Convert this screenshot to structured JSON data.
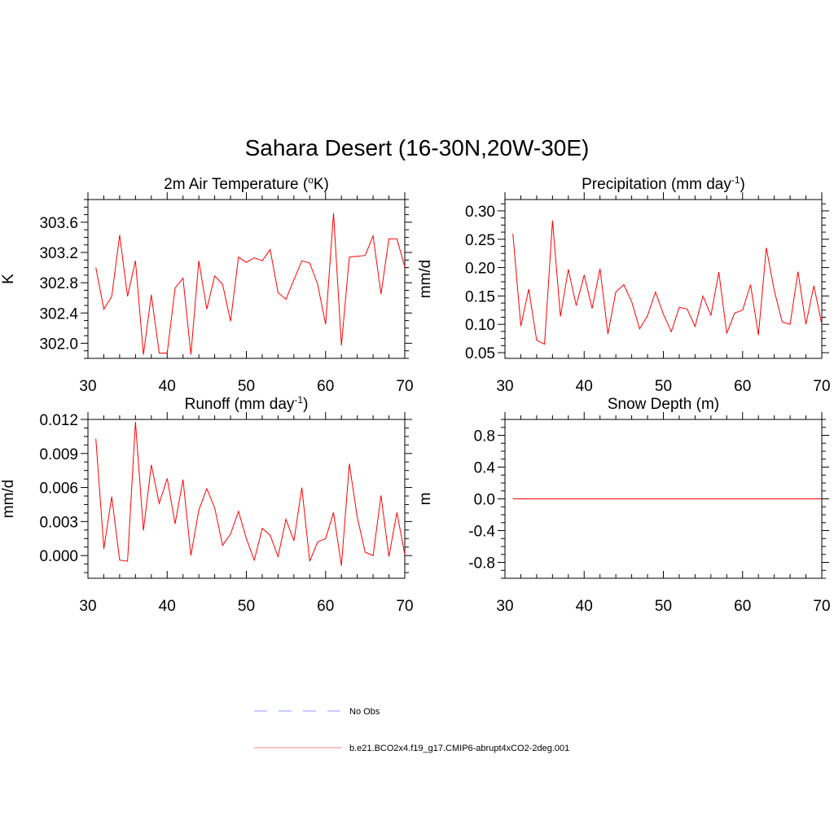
{
  "figure_title": "Sahara Desert (16-30N,20W-30E)",
  "legend": [
    {
      "label": "No Obs",
      "color": "#9999ff",
      "style": "dashed"
    },
    {
      "label": "b.e21.BCO2x4.f19_g17.CMIP6-abrupt4xCO2-2deg.001",
      "color": "#ff8080",
      "style": "solid"
    }
  ],
  "chart_data": [
    {
      "type": "line",
      "title": {
        "base": "2m Air Temperature (",
        "sup": "o",
        "after": "K)"
      },
      "ylabel": "K",
      "xlim": [
        30,
        70
      ],
      "ylim": [
        301.8,
        303.9
      ],
      "xticks": [
        "30",
        "40",
        "50",
        "60",
        "70"
      ],
      "yticks": [
        "302.0",
        "302.4",
        "302.8",
        "303.2",
        "303.6"
      ],
      "x": [
        31,
        32,
        33,
        34,
        35,
        36,
        37,
        38,
        39,
        40,
        41,
        42,
        43,
        44,
        45,
        46,
        47,
        48,
        49,
        50,
        51,
        52,
        53,
        54,
        55,
        56,
        57,
        58,
        59,
        60,
        61,
        62,
        63,
        64,
        65,
        66,
        67,
        68,
        69,
        70
      ],
      "series": [
        {
          "color": "#ff0000",
          "values": [
            303.0,
            302.45,
            302.62,
            303.43,
            302.62,
            303.09,
            301.85,
            302.64,
            301.87,
            301.87,
            302.73,
            302.86,
            301.85,
            303.09,
            302.45,
            302.89,
            302.78,
            302.29,
            303.14,
            303.07,
            303.13,
            303.09,
            303.24,
            302.67,
            302.58,
            302.84,
            303.09,
            303.06,
            302.78,
            302.25,
            303.72,
            301.97,
            303.14,
            303.15,
            303.16,
            303.42,
            302.65,
            303.38,
            303.38,
            303.01
          ]
        }
      ]
    },
    {
      "type": "line",
      "title": {
        "base": "Precipitation (mm day",
        "sup": "-1",
        "after": ")"
      },
      "ylabel": "mm/d",
      "xlim": [
        30,
        70
      ],
      "ylim": [
        0.04,
        0.32
      ],
      "xticks": [
        "30",
        "40",
        "50",
        "60",
        "70"
      ],
      "yticks": [
        "0.05",
        "0.10",
        "0.15",
        "0.20",
        "0.25",
        "0.30"
      ],
      "x": [
        31,
        32,
        33,
        34,
        35,
        36,
        37,
        38,
        39,
        40,
        41,
        42,
        43,
        44,
        45,
        46,
        47,
        48,
        49,
        50,
        51,
        52,
        53,
        54,
        55,
        56,
        57,
        58,
        59,
        60,
        61,
        62,
        63,
        64,
        65,
        66,
        67,
        68,
        69,
        70
      ],
      "series": [
        {
          "color": "#ff0000",
          "values": [
            0.26,
            0.097,
            0.162,
            0.072,
            0.065,
            0.283,
            0.114,
            0.197,
            0.133,
            0.187,
            0.128,
            0.198,
            0.083,
            0.157,
            0.17,
            0.14,
            0.092,
            0.115,
            0.157,
            0.118,
            0.087,
            0.13,
            0.127,
            0.096,
            0.15,
            0.116,
            0.192,
            0.084,
            0.12,
            0.125,
            0.17,
            0.081,
            0.235,
            0.16,
            0.104,
            0.1,
            0.193,
            0.1,
            0.168,
            0.1
          ]
        }
      ]
    },
    {
      "type": "line",
      "title": {
        "base": "Runoff (mm day",
        "sup": "-1",
        "after": ")"
      },
      "ylabel": "mm/d",
      "xlim": [
        30,
        70
      ],
      "ylim": [
        -0.002,
        0.012
      ],
      "xticks": [
        "30",
        "40",
        "50",
        "60",
        "70"
      ],
      "yticks": [
        "0.000",
        "0.003",
        "0.006",
        "0.009",
        "0.012"
      ],
      "x": [
        31,
        32,
        33,
        34,
        35,
        36,
        37,
        38,
        39,
        40,
        41,
        42,
        43,
        44,
        45,
        46,
        47,
        48,
        49,
        50,
        51,
        52,
        53,
        54,
        55,
        56,
        57,
        58,
        59,
        60,
        61,
        62,
        63,
        64,
        65,
        66,
        67,
        68,
        69,
        70
      ],
      "series": [
        {
          "color": "#ff0000",
          "values": [
            0.0103,
            0.0006,
            0.0052,
            -0.0004,
            -0.0005,
            0.0118,
            0.0022,
            0.008,
            0.0046,
            0.0068,
            0.0028,
            0.0067,
            0.0,
            0.004,
            0.0059,
            0.0042,
            0.0009,
            0.0019,
            0.0039,
            0.0015,
            -0.0004,
            0.0024,
            0.0018,
            -0.0001,
            0.0032,
            0.0013,
            0.006,
            -0.0005,
            0.0012,
            0.0015,
            0.0038,
            -0.0009,
            0.0081,
            0.0034,
            0.0003,
            0.0,
            0.0053,
            -0.0001,
            0.0038,
            0.0001
          ]
        }
      ]
    },
    {
      "type": "line",
      "title": {
        "base": "Snow Depth (m)",
        "sup": "",
        "after": ""
      },
      "ylabel": "m",
      "xlim": [
        30,
        70
      ],
      "ylim": [
        -1.0,
        1.0
      ],
      "xticks": [
        "30",
        "40",
        "50",
        "60",
        "70"
      ],
      "yticks": [
        "-0.8",
        "-0.4",
        "0.0",
        "0.4",
        "0.8"
      ],
      "x": [
        31,
        32,
        33,
        34,
        35,
        36,
        37,
        38,
        39,
        40,
        41,
        42,
        43,
        44,
        45,
        46,
        47,
        48,
        49,
        50,
        51,
        52,
        53,
        54,
        55,
        56,
        57,
        58,
        59,
        60,
        61,
        62,
        63,
        64,
        65,
        66,
        67,
        68,
        69,
        70
      ],
      "series": [
        {
          "color": "#ff0000",
          "values": [
            0,
            0,
            0,
            0,
            0,
            0,
            0,
            0,
            0,
            0,
            0,
            0,
            0,
            0,
            0,
            0,
            0,
            0,
            0,
            0,
            0,
            0,
            0,
            0,
            0,
            0,
            0,
            0,
            0,
            0,
            0,
            0,
            0,
            0,
            0,
            0,
            0,
            0,
            0,
            0
          ]
        }
      ]
    }
  ]
}
